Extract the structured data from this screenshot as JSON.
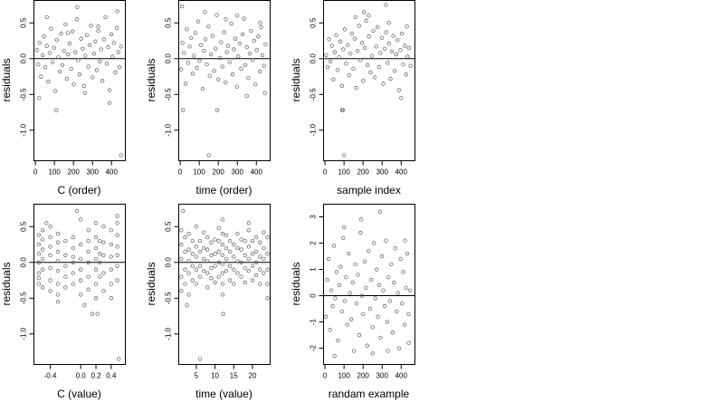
{
  "chart_data": [
    {
      "type": "scatter",
      "xlabel": "C (order)",
      "ylabel": "residuals",
      "xlim": [
        -10,
        470
      ],
      "ylim": [
        -1.42,
        0.82
      ],
      "xticks": [
        0,
        100,
        200,
        300,
        400
      ],
      "xtick_labels": [
        "0",
        "100",
        "200",
        "300",
        "400"
      ],
      "yticks": [
        -1.0,
        -0.5,
        0.0,
        0.5
      ],
      "ytick_labels": [
        "-1.0",
        "-0.5",
        "0.0",
        "0.5"
      ],
      "hline_y": 0,
      "grid": false,
      "x": [
        8,
        15,
        22,
        30,
        38,
        45,
        52,
        60,
        68,
        75,
        82,
        90,
        98,
        105,
        112,
        120,
        128,
        135,
        142,
        150,
        158,
        165,
        172,
        180,
        188,
        195,
        202,
        210,
        218,
        225,
        232,
        240,
        248,
        255,
        262,
        270,
        278,
        285,
        292,
        300,
        308,
        315,
        322,
        330,
        338,
        345,
        352,
        360,
        368,
        375,
        382,
        390,
        398,
        405,
        412,
        420,
        428,
        435,
        442,
        450,
        20,
        60,
        110,
        170,
        220,
        260,
        330,
        390,
        430,
        450
      ],
      "y": [
        0.12,
        -0.08,
        0.22,
        -0.25,
        0.05,
        0.31,
        -0.12,
        0.18,
        -0.32,
        0.08,
        0.42,
        -0.05,
        0.15,
        -0.45,
        0.26,
        0.02,
        -0.18,
        0.35,
        -0.09,
        0.11,
        0.48,
        -0.28,
        0.06,
        0.21,
        -0.14,
        0.38,
        -0.36,
        0.09,
        0.55,
        -0.02,
        -0.22,
        0.28,
        0.14,
        -0.38,
        0.04,
        0.33,
        -0.11,
        0.19,
        0.46,
        -0.26,
        0.07,
        0.24,
        -0.16,
        0.39,
        -0.04,
        0.13,
        -0.31,
        0.27,
        0.58,
        -0.07,
        0.16,
        -0.44,
        0.34,
        0.03,
        0.22,
        -0.19,
        0.43,
        0.09,
        -0.12,
        0.17,
        -0.55,
        0.58,
        -0.72,
        0.36,
        0.72,
        -0.48,
        0.45,
        -0.62,
        0.66,
        -1.35
      ]
    },
    {
      "type": "scatter",
      "xlabel": "time (order)",
      "ylabel": "residuals",
      "xlim": [
        -10,
        470
      ],
      "ylim": [
        -1.42,
        0.82
      ],
      "xticks": [
        0,
        100,
        200,
        300,
        400
      ],
      "xtick_labels": [
        "0",
        "100",
        "200",
        "300",
        "400"
      ],
      "yticks": [
        -1.0,
        -0.5,
        0.0,
        0.5
      ],
      "ytick_labels": [
        "-1.0",
        "-0.5",
        "0.0",
        "0.5"
      ],
      "hline_y": 0,
      "grid": false,
      "x": [
        5,
        12,
        20,
        28,
        35,
        42,
        50,
        58,
        65,
        72,
        80,
        88,
        95,
        102,
        110,
        118,
        125,
        132,
        140,
        148,
        155,
        162,
        170,
        178,
        185,
        192,
        200,
        208,
        215,
        222,
        230,
        238,
        245,
        252,
        260,
        268,
        275,
        282,
        290,
        298,
        305,
        312,
        320,
        328,
        335,
        342,
        350,
        358,
        365,
        372,
        380,
        388,
        395,
        402,
        410,
        418,
        425,
        432,
        440,
        448,
        10,
        15,
        130,
        150,
        195,
        240,
        300,
        350,
        420,
        445
      ],
      "y": [
        -0.15,
        0.22,
        0.08,
        -0.35,
        0.41,
        -0.06,
        0.17,
        0.29,
        -0.21,
        0.04,
        0.36,
        -0.13,
        0.52,
        -0.03,
        0.19,
        -0.42,
        0.11,
        0.27,
        -0.08,
        0.45,
        -0.24,
        0.06,
        0.32,
        -0.17,
        0.14,
        0.61,
        -0.29,
        0.01,
        0.23,
        -0.11,
        0.37,
        -0.33,
        0.09,
        0.18,
        -0.05,
        0.49,
        -0.22,
        0.13,
        0.28,
        -0.39,
        0.03,
        0.21,
        -0.14,
        0.34,
        0.56,
        -0.09,
        0.16,
        -0.27,
        0.07,
        0.39,
        -0.02,
        0.25,
        -0.36,
        0.12,
        0.31,
        -0.18,
        0.44,
        0.05,
        -0.1,
        0.2,
        0.73,
        -0.72,
        0.65,
        -1.35,
        -0.72,
        0.55,
        0.6,
        -0.52,
        0.5,
        -0.48
      ]
    },
    {
      "type": "scatter",
      "xlabel": "sample index",
      "ylabel": "residuals",
      "xlim": [
        -10,
        470
      ],
      "ylim": [
        -1.42,
        0.82
      ],
      "xticks": [
        0,
        100,
        200,
        300,
        400
      ],
      "xtick_labels": [
        "0",
        "100",
        "200",
        "300",
        "400"
      ],
      "yticks": [
        -1.0,
        -0.5,
        0.0,
        0.5
      ],
      "ytick_labels": [
        "-1.0",
        "-0.5",
        "0.0",
        "0.5"
      ],
      "hline_y": 0,
      "grid": false,
      "x": [
        6,
        14,
        21,
        29,
        36,
        44,
        51,
        59,
        66,
        74,
        81,
        89,
        96,
        104,
        111,
        119,
        126,
        134,
        141,
        149,
        156,
        164,
        171,
        179,
        186,
        194,
        201,
        209,
        216,
        224,
        231,
        239,
        246,
        254,
        261,
        269,
        276,
        284,
        291,
        299,
        306,
        314,
        321,
        329,
        336,
        344,
        351,
        359,
        366,
        374,
        381,
        389,
        396,
        404,
        411,
        419,
        426,
        434,
        441,
        449,
        90,
        95,
        100,
        160,
        205,
        230,
        320,
        335,
        400,
        430
      ],
      "y": [
        0.05,
        -0.12,
        0.27,
        -0.04,
        0.18,
        -0.29,
        0.09,
        0.33,
        -0.16,
        0.02,
        0.24,
        -0.38,
        0.13,
        0.41,
        -0.07,
        0.19,
        -0.23,
        0.07,
        0.35,
        -0.14,
        0.28,
        -0.41,
        0.11,
        0.46,
        -0.02,
        0.22,
        -0.31,
        0.15,
        0.53,
        -0.09,
        0.31,
        -0.19,
        0.04,
        0.39,
        -0.26,
        0.17,
        0.44,
        -0.12,
        0.08,
        0.29,
        -0.35,
        0.14,
        0.37,
        -0.06,
        0.21,
        -0.28,
        0.1,
        0.32,
        -0.17,
        0.06,
        0.26,
        -0.44,
        0.12,
        0.35,
        -0.08,
        0.18,
        -0.22,
        0.03,
        0.15,
        -0.1,
        -0.72,
        -0.72,
        -1.35,
        0.58,
        0.65,
        0.6,
        0.75,
        0.5,
        -0.55,
        0.45
      ]
    },
    {
      "type": "scatter",
      "xlabel": "C (value)",
      "ylabel": "residuals",
      "xlim": [
        -0.62,
        0.58
      ],
      "ylim": [
        -1.42,
        0.82
      ],
      "xticks": [
        -0.4,
        0.0,
        0.2,
        0.4
      ],
      "xtick_labels": [
        "-0.4",
        "0.0",
        "0.2",
        "0.4"
      ],
      "yticks": [
        -1.0,
        -0.5,
        0.0,
        0.5
      ],
      "ytick_labels": [
        "-1.0",
        "-0.5",
        "0.0",
        "0.5"
      ],
      "hline_y": 0,
      "grid": false,
      "x": [
        -0.55,
        -0.55,
        -0.55,
        -0.55,
        -0.55,
        -0.55,
        -0.55,
        -0.5,
        -0.5,
        -0.5,
        -0.5,
        -0.5,
        -0.5,
        -0.4,
        -0.4,
        -0.4,
        -0.4,
        -0.4,
        -0.4,
        -0.4,
        -0.3,
        -0.3,
        -0.3,
        -0.3,
        -0.3,
        -0.3,
        -0.3,
        -0.3,
        -0.2,
        -0.2,
        -0.2,
        -0.2,
        -0.2,
        -0.1,
        -0.1,
        -0.1,
        -0.1,
        -0.1,
        -0.1,
        0.0,
        0.0,
        0.0,
        0.0,
        0.0,
        0.0,
        0.1,
        0.1,
        0.1,
        0.1,
        0.1,
        0.1,
        0.2,
        0.2,
        0.2,
        0.2,
        0.2,
        0.2,
        0.2,
        0.25,
        0.25,
        0.25,
        0.25,
        0.3,
        0.3,
        0.3,
        0.3,
        0.3,
        0.4,
        0.4,
        0.4,
        0.4,
        0.4,
        0.4,
        0.48,
        0.48,
        0.48,
        0.48,
        0.48,
        0.48,
        0.48,
        -0.05,
        0.05,
        0.15,
        0.22,
        0.5,
        -0.45
      ],
      "y": [
        -0.3,
        -0.15,
        0.0,
        0.12,
        0.25,
        0.38,
        -0.22,
        -0.1,
        0.05,
        0.18,
        0.32,
        -0.35,
        0.45,
        -0.25,
        -0.08,
        0.1,
        0.22,
        0.35,
        -0.4,
        0.5,
        -0.45,
        -0.3,
        -0.12,
        0.02,
        0.15,
        0.28,
        -0.55,
        0.4,
        -0.2,
        -0.05,
        0.1,
        0.3,
        -0.35,
        -0.15,
        0.0,
        0.2,
        -0.3,
        0.35,
        0.08,
        -0.25,
        -0.1,
        0.05,
        0.25,
        0.6,
        -0.45,
        -0.2,
        0.0,
        0.15,
        0.3,
        -0.38,
        0.45,
        -0.5,
        -0.3,
        -0.1,
        0.05,
        0.2,
        0.35,
        0.55,
        -0.2,
        0.0,
        0.12,
        0.3,
        -0.4,
        -0.15,
        0.1,
        0.28,
        0.5,
        -0.3,
        -0.1,
        0.08,
        0.25,
        0.45,
        -0.5,
        -0.25,
        -0.05,
        0.1,
        0.22,
        0.38,
        0.55,
        0.65,
        0.72,
        -0.6,
        -0.72,
        -0.72,
        -1.35,
        0.55
      ]
    },
    {
      "type": "scatter",
      "xlabel": "time (value)",
      "ylabel": "residuals",
      "xlim": [
        0.2,
        24.6
      ],
      "ylim": [
        -1.42,
        0.82
      ],
      "xticks": [
        5,
        10,
        15,
        20
      ],
      "xtick_labels": [
        "5",
        "10",
        "15",
        "20"
      ],
      "yticks": [
        -1.0,
        -0.5,
        0.0,
        0.5
      ],
      "ytick_labels": [
        "-1.0",
        "-0.5",
        "0.0",
        "0.5"
      ],
      "hline_y": 0,
      "grid": false,
      "x": [
        1,
        1,
        1,
        1,
        1,
        2,
        2,
        2,
        2,
        3,
        3,
        3,
        3,
        3,
        4,
        4,
        4,
        4,
        5,
        5,
        5,
        5,
        5,
        6,
        6,
        6,
        6,
        7,
        7,
        7,
        7,
        8,
        8,
        8,
        8,
        8,
        9,
        9,
        9,
        9,
        10,
        10,
        10,
        10,
        11,
        11,
        11,
        11,
        11,
        12,
        12,
        12,
        12,
        12,
        12,
        12,
        13,
        13,
        13,
        13,
        14,
        14,
        14,
        14,
        15,
        15,
        15,
        15,
        16,
        16,
        16,
        16,
        17,
        17,
        17,
        17,
        18,
        18,
        18,
        18,
        19,
        19,
        19,
        19,
        20,
        20,
        20,
        20,
        21,
        21,
        21,
        21,
        22,
        22,
        22,
        22,
        23,
        23,
        23,
        23,
        24,
        24,
        24,
        24,
        24,
        1.5,
        2.5,
        12,
        6,
        12.2,
        19
      ],
      "y": [
        -0.2,
        0.05,
        0.25,
        0.45,
        -0.4,
        -0.1,
        0.15,
        0.35,
        -0.3,
        -0.15,
        0.02,
        0.18,
        0.4,
        -0.45,
        -0.05,
        0.12,
        0.3,
        -0.25,
        -0.3,
        -0.1,
        0.08,
        0.22,
        0.5,
        -0.05,
        0.15,
        0.3,
        -0.2,
        -0.12,
        0.05,
        0.2,
        0.42,
        -0.35,
        -0.15,
        0.02,
        0.18,
        0.35,
        -0.08,
        0.1,
        0.28,
        -0.22,
        -0.28,
        -0.05,
        0.12,
        0.32,
        -0.2,
        0.0,
        0.15,
        0.3,
        0.48,
        -0.45,
        -0.3,
        -0.15,
        -0.02,
        0.1,
        0.25,
        0.4,
        -0.12,
        0.05,
        0.2,
        0.38,
        -0.25,
        -0.05,
        0.15,
        0.3,
        -0.3,
        -0.1,
        0.08,
        0.25,
        -0.15,
        0.02,
        0.2,
        0.4,
        -0.2,
        0.0,
        0.18,
        0.32,
        -0.28,
        -0.08,
        0.1,
        0.3,
        -0.12,
        0.05,
        0.22,
        0.45,
        -0.25,
        -0.05,
        0.12,
        0.3,
        -0.18,
        0.0,
        0.15,
        0.35,
        -0.3,
        -0.1,
        0.08,
        0.28,
        -0.15,
        0.05,
        0.2,
        0.42,
        -0.5,
        -0.3,
        -0.1,
        0.12,
        0.35,
        0.72,
        -0.6,
        0.6,
        -1.35,
        -0.72,
        0.55
      ]
    },
    {
      "type": "scatter",
      "xlabel": "randam example",
      "ylabel": "residuals",
      "xlim": [
        -10,
        470
      ],
      "ylim": [
        -2.6,
        3.5
      ],
      "xticks": [
        0,
        100,
        200,
        300,
        400
      ],
      "xtick_labels": [
        "0",
        "100",
        "200",
        "300",
        "400"
      ],
      "yticks": [
        -2,
        -1,
        0,
        1,
        2,
        3
      ],
      "ytick_labels": [
        "-2",
        "-1",
        "0",
        "1",
        "2",
        "3"
      ],
      "hline_y": 0,
      "grid": false,
      "x": [
        5,
        12,
        19,
        26,
        33,
        40,
        47,
        54,
        61,
        68,
        75,
        82,
        89,
        96,
        103,
        110,
        117,
        124,
        131,
        138,
        145,
        152,
        159,
        166,
        173,
        180,
        187,
        194,
        201,
        208,
        215,
        222,
        229,
        236,
        243,
        250,
        257,
        264,
        271,
        278,
        285,
        292,
        299,
        306,
        313,
        320,
        327,
        334,
        341,
        348,
        355,
        362,
        369,
        376,
        383,
        390,
        397,
        404,
        411,
        418,
        425,
        432,
        439,
        446,
        50,
        100,
        190,
        250,
        290,
        330,
        420,
        440
      ],
      "y": [
        -0.8,
        0.6,
        1.4,
        -1.3,
        0.2,
        -0.4,
        1.9,
        -0.1,
        0.9,
        -1.7,
        0.4,
        1.1,
        -0.6,
        2.2,
        -0.2,
        0.7,
        -1.1,
        1.6,
        0.1,
        -0.9,
        0.5,
        -2.1,
        1.2,
        -0.3,
        0.8,
        -1.5,
        2.4,
        0.0,
        -0.7,
        1.3,
        0.3,
        -1.9,
        1.7,
        -0.5,
        0.6,
        -1.2,
        2.0,
        -0.1,
        1.0,
        -0.8,
        0.4,
        -1.6,
        1.5,
        0.2,
        -0.4,
        2.1,
        -1.0,
        0.7,
        -0.2,
        1.2,
        -1.4,
        0.5,
        1.8,
        -0.6,
        0.1,
        -2.0,
        1.4,
        -0.3,
        0.9,
        -1.1,
        0.3,
        1.6,
        -0.7,
        0.2,
        -2.3,
        2.6,
        2.9,
        -2.2,
        3.2,
        -2.1,
        2.1,
        -1.8
      ]
    }
  ]
}
